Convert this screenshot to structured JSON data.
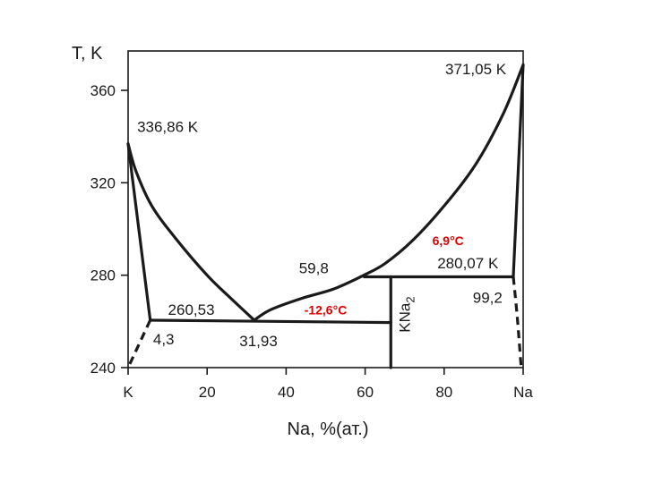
{
  "chart_data": {
    "type": "line",
    "title": "",
    "ylabel": "T, K",
    "xlabel": "Na, %(ат.)",
    "xlim": [
      0,
      100
    ],
    "ylim": [
      240,
      372
    ],
    "x_ticks": [
      {
        "value": 0,
        "label": "K"
      },
      {
        "value": 20,
        "label": "20"
      },
      {
        "value": 40,
        "label": "40"
      },
      {
        "value": 60,
        "label": "60"
      },
      {
        "value": 80,
        "label": "80"
      },
      {
        "value": 100,
        "label": "Na"
      }
    ],
    "y_ticks": [
      {
        "value": 240,
        "label": "240"
      },
      {
        "value": 280,
        "label": "280"
      },
      {
        "value": 320,
        "label": "320"
      },
      {
        "value": 360,
        "label": "360"
      }
    ],
    "series": [
      {
        "values": [
          [
            0,
            336.86
          ],
          [
            2,
            325
          ],
          [
            6,
            310
          ],
          [
            12,
            296
          ],
          [
            20,
            280
          ],
          [
            26,
            270
          ],
          [
            31.93,
            260.53
          ]
        ]
      },
      {
        "values": [
          [
            31.93,
            260.53
          ],
          [
            36,
            265
          ],
          [
            44,
            270
          ],
          [
            52,
            274
          ],
          [
            59.8,
            280.07
          ]
        ]
      },
      {
        "values": [
          [
            59.8,
            280.07
          ],
          [
            65,
            285
          ],
          [
            72,
            295
          ],
          [
            80,
            310
          ],
          [
            88,
            328
          ],
          [
            95,
            350
          ],
          [
            100,
            371.05
          ]
        ]
      },
      {
        "values": [
          [
            59.8,
            279.3
          ],
          [
            97.5,
            279.3
          ]
        ]
      },
      {
        "values": [
          [
            5.6,
            260.53
          ],
          [
            66.5,
            259.5
          ]
        ]
      },
      {
        "values": [
          [
            0,
            336.86
          ],
          [
            5.6,
            260.53
          ]
        ]
      },
      {
        "values": [
          [
            100,
            371.05
          ],
          [
            97.5,
            279.3
          ]
        ]
      },
      {
        "values": [
          [
            66.5,
            279.3
          ],
          [
            66.5,
            240
          ]
        ]
      }
    ],
    "dashed_series": [
      {
        "values": [
          [
            5.6,
            260.53
          ],
          [
            0,
            240
          ]
        ]
      },
      {
        "values": [
          [
            97.5,
            279.3
          ],
          [
            98.5,
            262
          ],
          [
            99.5,
            240
          ]
        ]
      }
    ],
    "annotations": [
      {
        "text": "371,05 K",
        "x": 88,
        "y": 367
      },
      {
        "text": "336,86 K",
        "x": 10,
        "y": 342
      },
      {
        "text": "6,9°C",
        "x": 81,
        "y": 293
      },
      {
        "text": "59,8",
        "x": 47,
        "y": 280.8
      },
      {
        "text": "280,07 K",
        "x": 86,
        "y": 283
      },
      {
        "text": "99,2",
        "x": 91,
        "y": 268
      },
      {
        "text": "260,53",
        "x": 16,
        "y": 262.8
      },
      {
        "text": "-12,6°C",
        "x": 50,
        "y": 263
      },
      {
        "text": "4,3",
        "x": 9,
        "y": 250
      },
      {
        "text": "31,93",
        "x": 33,
        "y": 249.3
      },
      {
        "text": "KNa2",
        "x": 70,
        "y": 263
      }
    ]
  }
}
